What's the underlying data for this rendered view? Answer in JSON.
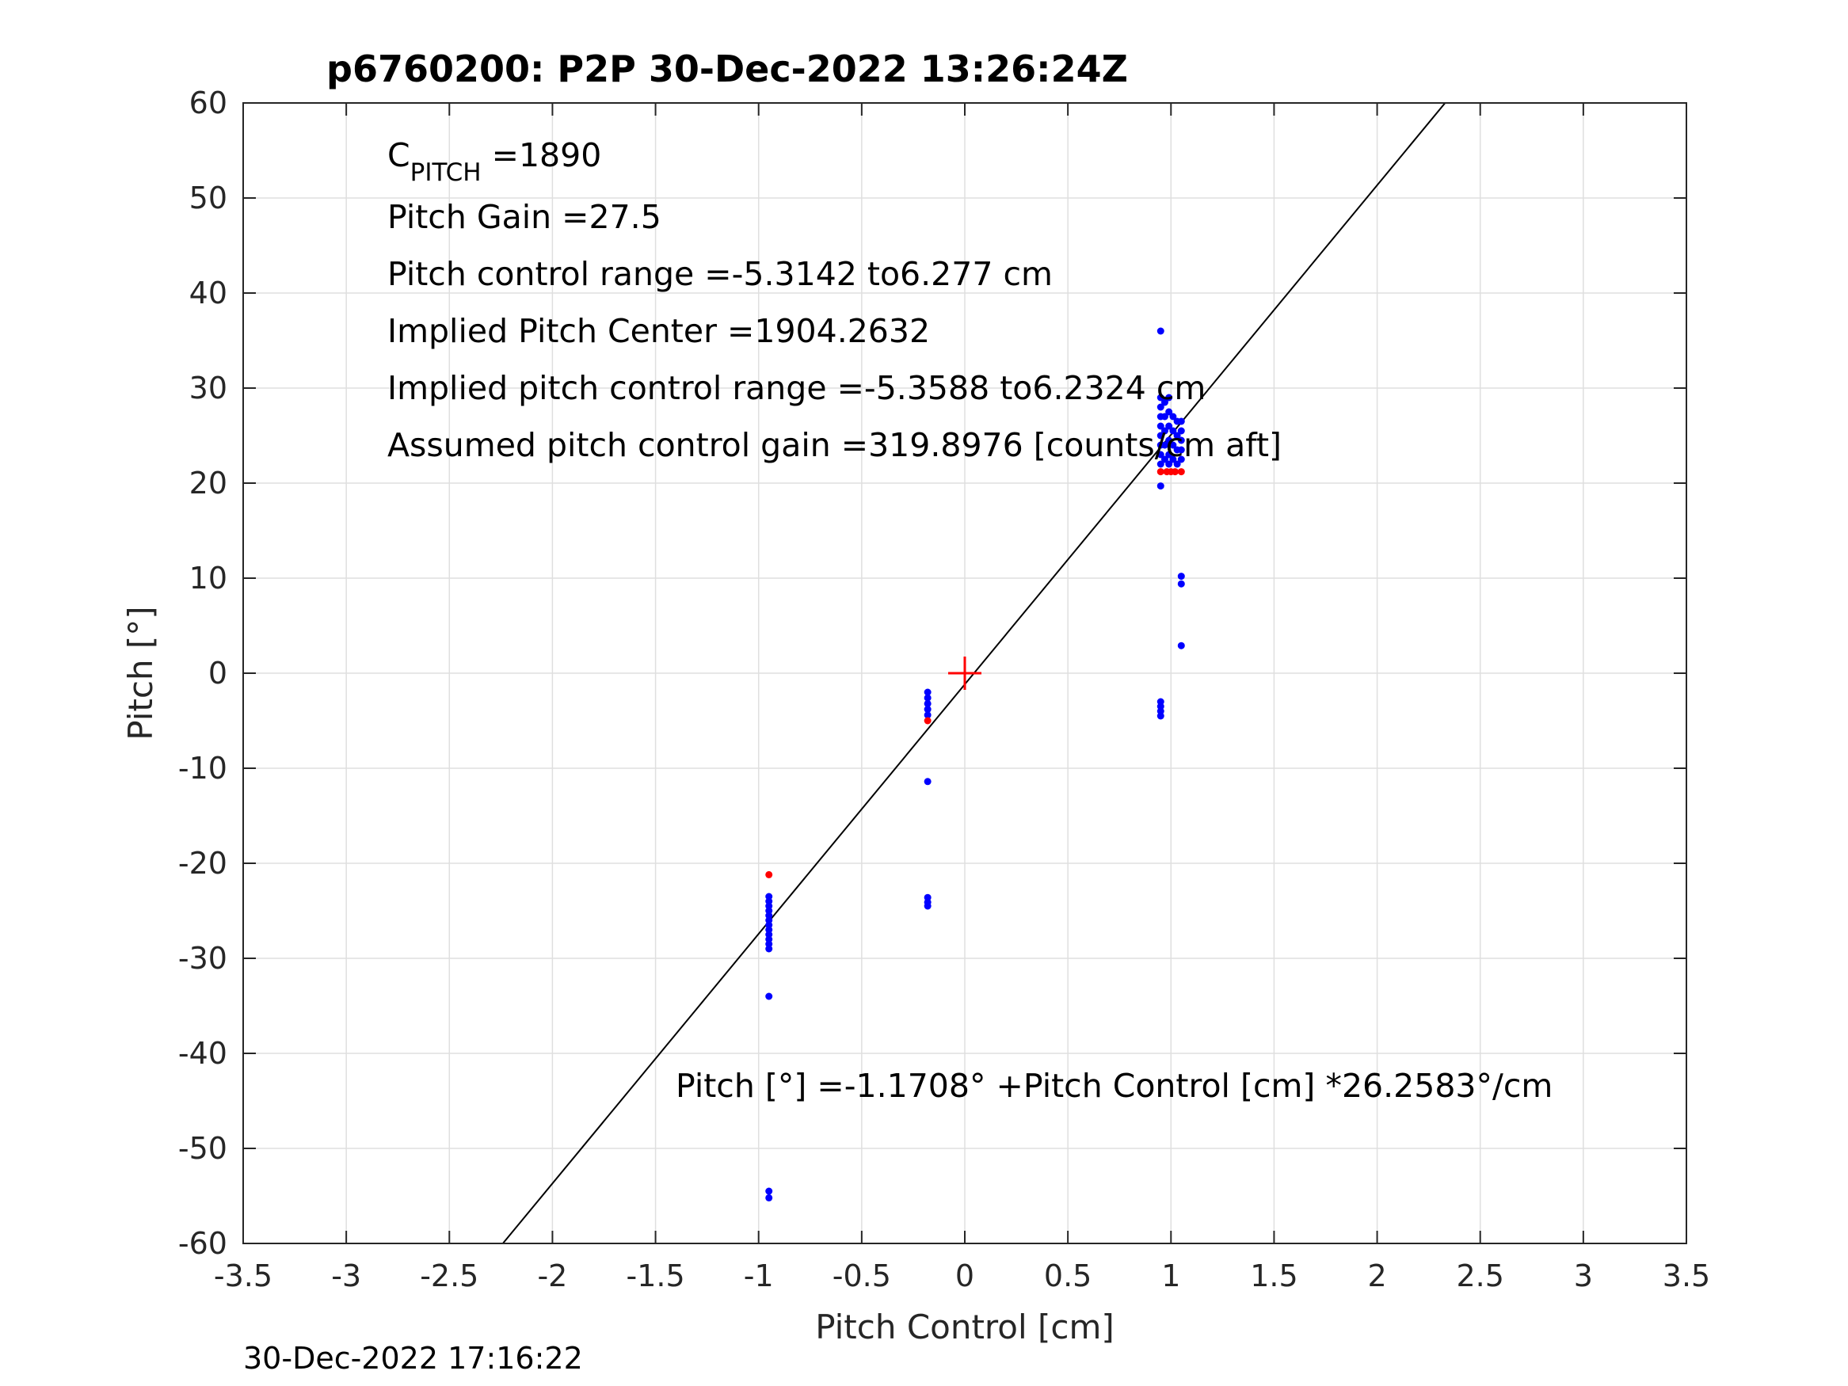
{
  "chart_data": {
    "type": "scatter",
    "title": "p6760200: P2P 30-Dec-2022 13:26:24Z",
    "xlabel": "Pitch Control [cm]",
    "ylabel": "Pitch [°]",
    "xlim": [
      -3.5,
      3.5
    ],
    "ylim": [
      -60,
      60
    ],
    "x_ticks": [
      -3.5,
      -3,
      -2.5,
      -2,
      -1.5,
      -1,
      -0.5,
      0,
      0.5,
      1,
      1.5,
      2,
      2.5,
      3,
      3.5
    ],
    "y_ticks": [
      -60,
      -50,
      -40,
      -30,
      -20,
      -10,
      0,
      10,
      20,
      30,
      40,
      50,
      60
    ],
    "x_tick_labels": [
      "-3.5",
      "-3",
      "-2.5",
      "-2",
      "-1.5",
      "-1",
      "-0.5",
      "0",
      "0.5",
      "1",
      "1.5",
      "2",
      "2.5",
      "3",
      "3.5"
    ],
    "y_tick_labels": [
      "-60",
      "-50",
      "-40",
      "-30",
      "-20",
      "-10",
      "0",
      "10",
      "20",
      "30",
      "40",
      "50",
      "60"
    ],
    "grid": true,
    "colors": {
      "blue": "#0000ff",
      "red": "#ff0000",
      "line": "#000000"
    },
    "series": [
      {
        "color": "#0000ff",
        "points": [
          [
            -0.95,
            -23.5
          ],
          [
            -0.95,
            -24.0
          ],
          [
            -0.95,
            -24.5
          ],
          [
            -0.95,
            -25.0
          ],
          [
            -0.95,
            -25.5
          ],
          [
            -0.95,
            -26.0
          ],
          [
            -0.95,
            -26.5
          ],
          [
            -0.95,
            -27.0
          ],
          [
            -0.95,
            -27.5
          ],
          [
            -0.95,
            -28.0
          ],
          [
            -0.95,
            -28.5
          ],
          [
            -0.95,
            -29.0
          ],
          [
            -0.95,
            -34.0
          ],
          [
            -0.95,
            -54.5
          ],
          [
            -0.95,
            -55.2
          ],
          [
            -0.18,
            -2.0
          ],
          [
            -0.18,
            -2.6
          ],
          [
            -0.18,
            -3.2
          ],
          [
            -0.18,
            -3.8
          ],
          [
            -0.18,
            -4.4
          ],
          [
            -0.18,
            -11.4
          ],
          [
            -0.18,
            -23.6
          ],
          [
            -0.18,
            -24.1
          ],
          [
            -0.18,
            -24.5
          ],
          [
            0.95,
            36.0
          ],
          [
            0.95,
            29.0
          ],
          [
            0.95,
            28.0
          ],
          [
            0.95,
            27.0
          ],
          [
            0.95,
            26.0
          ],
          [
            0.95,
            25.0
          ],
          [
            0.95,
            24.0
          ],
          [
            0.95,
            23.0
          ],
          [
            0.95,
            22.0
          ],
          [
            0.95,
            19.7
          ],
          [
            0.95,
            -3.0
          ],
          [
            0.95,
            -3.5
          ],
          [
            0.95,
            -4.0
          ],
          [
            0.95,
            -4.5
          ],
          [
            0.97,
            28.5
          ],
          [
            0.97,
            27.0
          ],
          [
            0.97,
            25.5
          ],
          [
            0.97,
            24.0
          ],
          [
            0.97,
            22.5
          ],
          [
            0.99,
            29.0
          ],
          [
            0.99,
            27.5
          ],
          [
            0.99,
            26.0
          ],
          [
            0.99,
            24.5
          ],
          [
            0.99,
            23.0
          ],
          [
            0.99,
            22.0
          ],
          [
            1.01,
            27.0
          ],
          [
            1.01,
            25.5
          ],
          [
            1.01,
            24.0
          ],
          [
            1.01,
            22.5
          ],
          [
            1.03,
            26.5
          ],
          [
            1.03,
            25.0
          ],
          [
            1.03,
            23.5
          ],
          [
            1.03,
            22.0
          ],
          [
            1.05,
            26.5
          ],
          [
            1.05,
            25.5
          ],
          [
            1.05,
            24.5
          ],
          [
            1.05,
            23.5
          ],
          [
            1.05,
            22.5
          ],
          [
            1.05,
            10.2
          ],
          [
            1.05,
            9.4
          ],
          [
            1.05,
            2.9
          ]
        ]
      },
      {
        "color": "#ff0000",
        "points": [
          [
            -0.95,
            -21.2
          ],
          [
            -0.18,
            -5.0
          ],
          [
            0.95,
            21.2
          ],
          [
            0.98,
            21.2
          ],
          [
            1.0,
            21.2
          ],
          [
            1.02,
            21.2
          ],
          [
            1.05,
            21.2
          ]
        ]
      }
    ],
    "fit_line": {
      "intercept": -1.1708,
      "slope": 26.2583
    },
    "center_marker": {
      "x": 0,
      "y": 0,
      "color": "#ff0000"
    },
    "annotations": {
      "cpitch_prefix": "C",
      "cpitch_sub": "PITCH",
      "cpitch_value": " =1890",
      "pitch_gain": "Pitch Gain =27.5",
      "control_range": "Pitch control range =-5.3142 to6.277 cm",
      "implied_center": "Implied Pitch Center =1904.2632",
      "implied_range": "Implied pitch control range =-5.3588 to6.2324 cm",
      "assumed_gain": "Assumed pitch control gain =319.8976 [counts/cm aft]",
      "fit_equation": "Pitch [°] =-1.1708° +Pitch Control [cm] *26.2583°/cm"
    },
    "timestamp": "30-Dec-2022 17:16:22"
  }
}
